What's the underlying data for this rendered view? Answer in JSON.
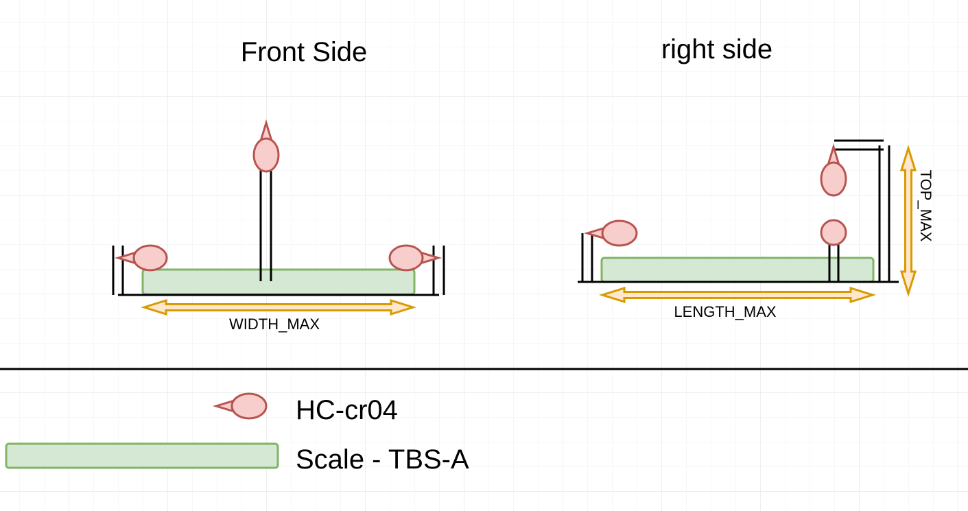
{
  "front": {
    "title": "Front Side",
    "dimension_label": "WIDTH_MAX"
  },
  "right": {
    "title": "right side",
    "length_label": "LENGTH_MAX",
    "height_label": "TOP_MAX"
  },
  "legend": {
    "sensor_label": "HC-cr04",
    "scale_label": "Scale - TBS-A"
  },
  "colors": {
    "scale_fill": "#d5e8d4",
    "scale_stroke": "#82b366",
    "sensor_fill": "#f8cecc",
    "sensor_stroke": "#b85450",
    "arrow_fill": "#ffe6cc",
    "arrow_stroke": "#d79b00"
  }
}
